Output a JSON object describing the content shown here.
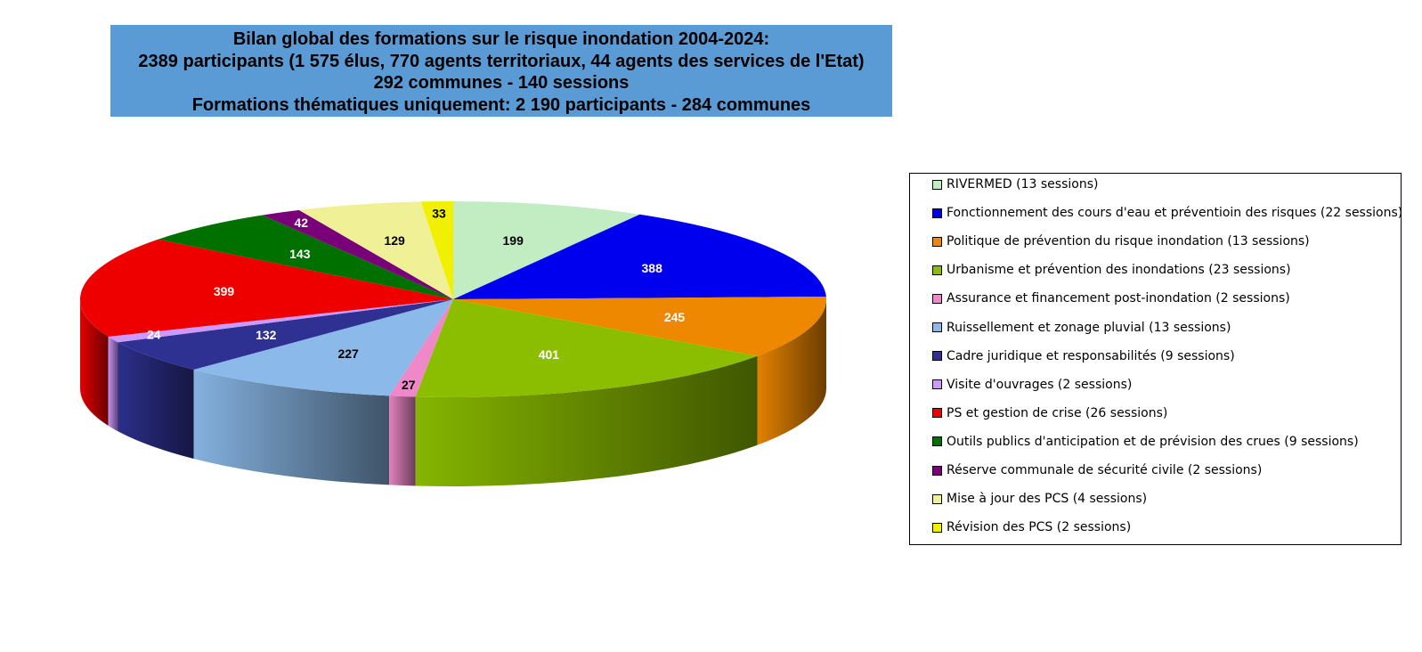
{
  "title_lines": [
    "Bilan global des formations sur le risque inondation 2004-2024:",
    "2389 participants (1 575 élus, 770 agents territoriaux, 44 agents des services de l'Etat)",
    "292 communes - 140 sessions",
    "Formations thématiques uniquement: 2 190 participants -  284 communes"
  ],
  "chart_data": {
    "type": "pie",
    "style": "3d",
    "start": "top",
    "direction": "clockwise",
    "legend_position": "right",
    "series": [
      {
        "name": "RIVERMED (13 sessions)",
        "value": 199,
        "color": "#c2ecc2",
        "label_color": "#000000"
      },
      {
        "name": "Fonctionnement des cours d'eau et préventioin des risques (22 sessions)",
        "value": 388,
        "color": "#0000ee",
        "label_color": "#ffffff"
      },
      {
        "name": "Politique de prévention du risque inondation (13 sessions)",
        "value": 245,
        "color": "#ee8800",
        "label_color": "#ffffff"
      },
      {
        "name": "Urbanisme et prévention des inondations (23 sessions)",
        "value": 401,
        "color": "#8cbe00",
        "label_color": "#ffffff"
      },
      {
        "name": "Assurance et financement post-inondation (2 sessions)",
        "value": 27,
        "color": "#ee88c8",
        "label_color": "#000000"
      },
      {
        "name": "Ruissellement et zonage pluvial (13 sessions)",
        "value": 227,
        "color": "#8bbaea",
        "label_color": "#000000"
      },
      {
        "name": "Cadre juridique et responsabilités (9 sessions)",
        "value": 132,
        "color": "#2e3192",
        "label_color": "#ffffff"
      },
      {
        "name": "Visite d'ouvrages (2 sessions)",
        "value": 24,
        "color": "#cc99ff",
        "label_color": "#ffffff"
      },
      {
        "name": "PS et gestion de crise (26 sessions)",
        "value": 399,
        "color": "#ee0000",
        "label_color": "#ffffff"
      },
      {
        "name": "Outils publics d'anticipation et de prévision des crues  (9 sessions)",
        "value": 143,
        "color": "#007000",
        "label_color": "#ffffff"
      },
      {
        "name": "Réserve communale de sécurité civile (2 sessions)",
        "value": 42,
        "color": "#7a007a",
        "label_color": "#ffffff"
      },
      {
        "name": "Mise à jour des PCS (4 sessions)",
        "value": 129,
        "color": "#f0f096",
        "label_color": "#000000"
      },
      {
        "name": "Révision des PCS (2 sessions)",
        "value": 33,
        "color": "#f0f000",
        "label_color": "#000000"
      }
    ]
  }
}
